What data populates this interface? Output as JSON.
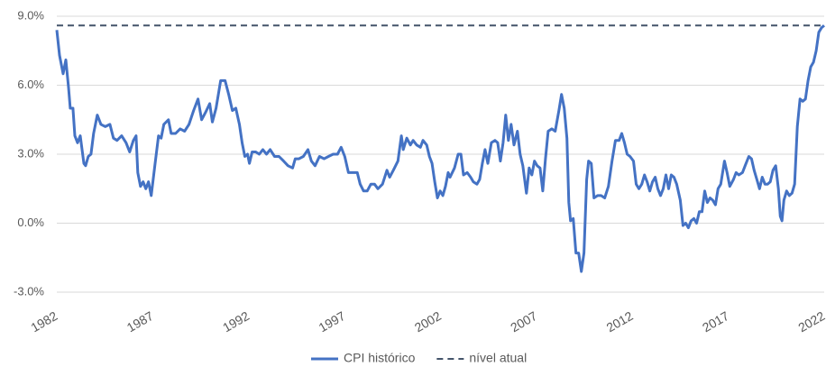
{
  "chart_data": {
    "type": "line",
    "xlim": [
      1982,
      2022
    ],
    "xticks": [
      1982,
      1987,
      1992,
      1997,
      2002,
      2007,
      2012,
      2017,
      2022
    ],
    "ylim": [
      -3,
      9
    ],
    "yticks": [
      {
        "value": -3,
        "label": "-3.0%"
      },
      {
        "value": 0,
        "label": "0.0%"
      },
      {
        "value": 3,
        "label": "3.0%"
      },
      {
        "value": 6,
        "label": "6.0%"
      },
      {
        "value": 9,
        "label": "9.0%"
      }
    ],
    "grid": true,
    "legend": "bottom",
    "series": [
      {
        "name": "CPI histórico",
        "color": "#4472c4",
        "dash": false,
        "x": [
          1982.0,
          1982.14,
          1982.33,
          1982.47,
          1982.61,
          1982.7,
          1982.84,
          1982.94,
          1983.08,
          1983.22,
          1983.41,
          1983.5,
          1983.64,
          1983.78,
          1983.92,
          1984.11,
          1984.3,
          1984.53,
          1984.77,
          1984.95,
          1985.14,
          1985.38,
          1985.61,
          1985.8,
          1985.99,
          1986.13,
          1986.22,
          1986.36,
          1986.5,
          1986.64,
          1986.78,
          1986.92,
          1987.11,
          1987.3,
          1987.44,
          1987.58,
          1987.82,
          1987.96,
          1988.19,
          1988.43,
          1988.66,
          1988.89,
          1989.13,
          1989.36,
          1989.55,
          1989.74,
          1989.97,
          1990.11,
          1990.3,
          1990.54,
          1990.77,
          1990.96,
          1991.15,
          1991.33,
          1991.52,
          1991.66,
          1991.8,
          1991.94,
          1992.04,
          1992.18,
          1992.37,
          1992.55,
          1992.74,
          1992.93,
          1993.12,
          1993.35,
          1993.58,
          1993.82,
          1994.05,
          1994.29,
          1994.43,
          1994.62,
          1994.85,
          1995.09,
          1995.27,
          1995.46,
          1995.69,
          1995.93,
          1996.16,
          1996.4,
          1996.63,
          1996.82,
          1997.01,
          1997.2,
          1997.43,
          1997.66,
          1997.81,
          1997.99,
          1998.18,
          1998.37,
          1998.56,
          1998.74,
          1998.98,
          1999.21,
          1999.35,
          1999.54,
          1999.78,
          1999.96,
          2000.06,
          2000.24,
          2000.43,
          2000.57,
          2000.76,
          2000.95,
          2001.09,
          2001.28,
          2001.42,
          2001.56,
          2001.7,
          2001.84,
          2001.98,
          2002.12,
          2002.26,
          2002.4,
          2002.5,
          2002.73,
          2002.92,
          2003.06,
          2003.2,
          2003.39,
          2003.57,
          2003.71,
          2003.9,
          2004.04,
          2004.18,
          2004.32,
          2004.47,
          2004.65,
          2004.84,
          2004.98,
          2005.12,
          2005.26,
          2005.4,
          2005.54,
          2005.68,
          2005.83,
          2006.01,
          2006.15,
          2006.29,
          2006.48,
          2006.62,
          2006.76,
          2006.9,
          2007.04,
          2007.19,
          2007.33,
          2007.47,
          2007.61,
          2007.8,
          2007.98,
          2008.17,
          2008.31,
          2008.45,
          2008.59,
          2008.69,
          2008.78,
          2008.92,
          2009.06,
          2009.2,
          2009.34,
          2009.48,
          2009.62,
          2009.72,
          2009.86,
          2010.0,
          2010.19,
          2010.37,
          2010.56,
          2010.75,
          2010.94,
          2011.12,
          2011.31,
          2011.45,
          2011.59,
          2011.73,
          2011.88,
          2012.06,
          2012.2,
          2012.34,
          2012.49,
          2012.63,
          2012.77,
          2012.91,
          2013.05,
          2013.19,
          2013.33,
          2013.47,
          2013.61,
          2013.75,
          2013.89,
          2014.03,
          2014.17,
          2014.31,
          2014.5,
          2014.64,
          2014.78,
          2014.92,
          2015.06,
          2015.21,
          2015.35,
          2015.49,
          2015.63,
          2015.77,
          2015.91,
          2016.05,
          2016.19,
          2016.33,
          2016.47,
          2016.61,
          2016.8,
          2016.94,
          2017.08,
          2017.27,
          2017.41,
          2017.55,
          2017.74,
          2017.88,
          2018.07,
          2018.21,
          2018.35,
          2018.49,
          2018.63,
          2018.77,
          2018.91,
          2019.05,
          2019.19,
          2019.33,
          2019.47,
          2019.61,
          2019.71,
          2019.8,
          2019.9,
          2020.04,
          2020.18,
          2020.32,
          2020.46,
          2020.6,
          2020.74,
          2020.88,
          2021.02,
          2021.16,
          2021.3,
          2021.44,
          2021.58,
          2021.72,
          2021.86,
          2022.0
        ],
        "values": [
          8.4,
          7.3,
          6.5,
          7.1,
          5.9,
          5.0,
          5.0,
          3.8,
          3.5,
          3.8,
          2.6,
          2.5,
          2.9,
          3.0,
          3.9,
          4.7,
          4.3,
          4.2,
          4.3,
          3.7,
          3.6,
          3.8,
          3.5,
          3.1,
          3.6,
          3.8,
          2.2,
          1.6,
          1.8,
          1.5,
          1.8,
          1.2,
          2.5,
          3.8,
          3.7,
          4.3,
          4.5,
          3.9,
          3.9,
          4.1,
          4.0,
          4.3,
          4.9,
          5.4,
          4.5,
          4.8,
          5.2,
          4.4,
          5.0,
          6.2,
          6.2,
          5.6,
          4.9,
          5.0,
          4.3,
          3.5,
          2.9,
          3.0,
          2.6,
          3.1,
          3.1,
          3.0,
          3.2,
          3.0,
          3.2,
          2.9,
          2.9,
          2.7,
          2.5,
          2.4,
          2.8,
          2.8,
          2.9,
          3.2,
          2.7,
          2.5,
          2.9,
          2.8,
          2.9,
          3.0,
          3.0,
          3.3,
          2.9,
          2.2,
          2.2,
          2.2,
          1.7,
          1.4,
          1.4,
          1.7,
          1.7,
          1.5,
          1.7,
          2.3,
          2.0,
          2.3,
          2.7,
          3.8,
          3.2,
          3.7,
          3.4,
          3.6,
          3.4,
          3.3,
          3.6,
          3.4,
          2.9,
          2.6,
          1.8,
          1.1,
          1.4,
          1.2,
          1.6,
          2.2,
          2.0,
          2.4,
          3.0,
          3.0,
          2.1,
          2.2,
          2.0,
          1.8,
          1.7,
          1.9,
          2.6,
          3.2,
          2.6,
          3.5,
          3.6,
          3.5,
          2.7,
          3.5,
          4.7,
          3.6,
          4.3,
          3.4,
          4.0,
          3.0,
          2.5,
          1.3,
          2.4,
          2.1,
          2.7,
          2.5,
          2.4,
          1.4,
          2.8,
          4.0,
          4.1,
          4.0,
          4.9,
          5.6,
          5.0,
          3.7,
          0.9,
          0.1,
          0.2,
          -1.3,
          -1.3,
          -2.1,
          -1.3,
          1.9,
          2.7,
          2.6,
          1.1,
          1.2,
          1.2,
          1.1,
          1.6,
          2.7,
          3.6,
          3.6,
          3.9,
          3.5,
          3.0,
          2.9,
          2.7,
          1.7,
          1.5,
          1.7,
          2.1,
          1.8,
          1.4,
          1.8,
          2.0,
          1.5,
          1.2,
          1.5,
          2.1,
          1.5,
          2.1,
          2.0,
          1.7,
          1.0,
          -0.1,
          0.0,
          -0.2,
          0.1,
          0.2,
          0.0,
          0.5,
          0.5,
          1.4,
          0.9,
          1.1,
          1.0,
          0.8,
          1.5,
          1.7,
          2.7,
          2.2,
          1.6,
          1.9,
          2.2,
          2.1,
          2.2,
          2.5,
          2.9,
          2.8,
          2.3,
          1.9,
          1.5,
          2.0,
          1.7,
          1.7,
          1.8,
          2.3,
          2.5,
          1.5,
          0.3,
          0.1,
          1.0,
          1.4,
          1.2,
          1.3,
          1.7,
          4.2,
          5.4,
          5.3,
          5.4,
          6.2,
          6.8,
          7.0,
          7.5,
          8.3,
          8.5,
          8.6
        ]
      },
      {
        "name": "nível atual",
        "color": "#44546a",
        "dash": true,
        "x": [
          1982,
          2022
        ],
        "values": [
          8.6,
          8.6
        ]
      }
    ]
  }
}
